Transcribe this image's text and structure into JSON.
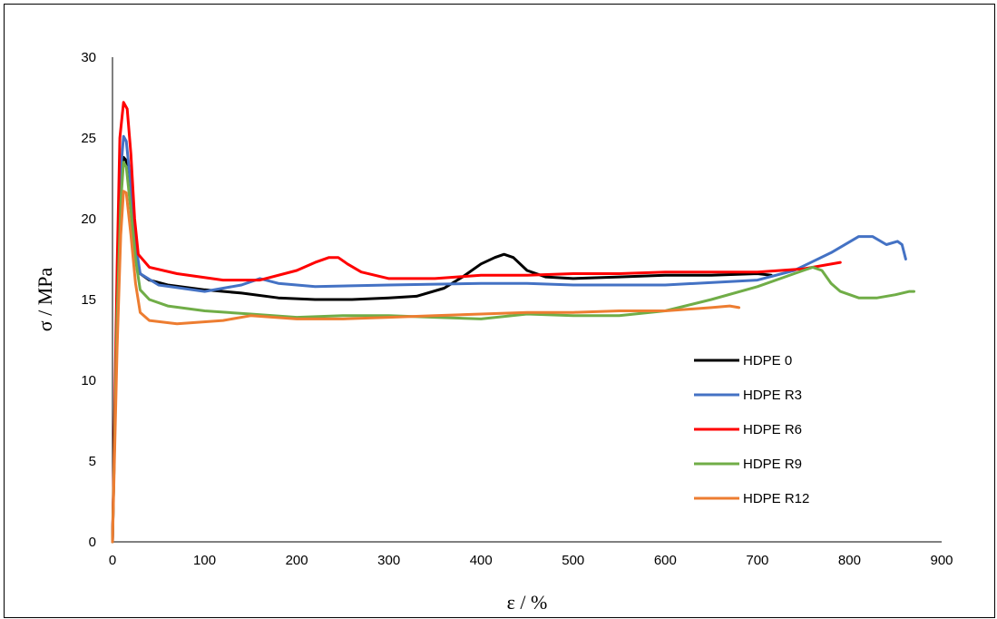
{
  "chart_data": {
    "type": "line",
    "xlabel": "ε / %",
    "ylabel": "σ / MPa",
    "xlim": [
      0,
      900
    ],
    "ylim": [
      0,
      30
    ],
    "xticks": [
      0,
      100,
      200,
      300,
      400,
      500,
      600,
      700,
      800,
      900
    ],
    "yticks": [
      0,
      5,
      10,
      15,
      20,
      25,
      30
    ],
    "grid": false,
    "legend_position": "right",
    "series": [
      {
        "name": "HDPE 0",
        "color": "#000000",
        "points": [
          [
            0,
            0
          ],
          [
            5,
            14
          ],
          [
            9,
            22
          ],
          [
            12,
            23.8
          ],
          [
            15,
            23.6
          ],
          [
            20,
            21
          ],
          [
            25,
            18
          ],
          [
            30,
            16.6
          ],
          [
            40,
            16.2
          ],
          [
            60,
            15.9
          ],
          [
            100,
            15.6
          ],
          [
            140,
            15.4
          ],
          [
            180,
            15.1
          ],
          [
            220,
            15.0
          ],
          [
            260,
            15.0
          ],
          [
            300,
            15.1
          ],
          [
            330,
            15.2
          ],
          [
            360,
            15.7
          ],
          [
            380,
            16.4
          ],
          [
            400,
            17.2
          ],
          [
            415,
            17.6
          ],
          [
            425,
            17.8
          ],
          [
            435,
            17.6
          ],
          [
            450,
            16.8
          ],
          [
            470,
            16.4
          ],
          [
            500,
            16.3
          ],
          [
            550,
            16.4
          ],
          [
            600,
            16.5
          ],
          [
            650,
            16.5
          ],
          [
            700,
            16.6
          ],
          [
            715,
            16.5
          ]
        ]
      },
      {
        "name": "HDPE R3",
        "color": "#4472C4",
        "points": [
          [
            0,
            0
          ],
          [
            5,
            15
          ],
          [
            9,
            23
          ],
          [
            12,
            25.1
          ],
          [
            15,
            24.8
          ],
          [
            20,
            22
          ],
          [
            25,
            18.5
          ],
          [
            30,
            16.6
          ],
          [
            50,
            15.9
          ],
          [
            100,
            15.5
          ],
          [
            140,
            15.9
          ],
          [
            160,
            16.3
          ],
          [
            180,
            16.0
          ],
          [
            220,
            15.8
          ],
          [
            300,
            15.9
          ],
          [
            400,
            16.0
          ],
          [
            450,
            16.0
          ],
          [
            500,
            15.9
          ],
          [
            600,
            15.9
          ],
          [
            700,
            16.2
          ],
          [
            740,
            16.8
          ],
          [
            780,
            17.9
          ],
          [
            810,
            18.9
          ],
          [
            825,
            18.9
          ],
          [
            840,
            18.4
          ],
          [
            852,
            18.6
          ],
          [
            857,
            18.4
          ],
          [
            861,
            17.5
          ]
        ]
      },
      {
        "name": "HDPE R6",
        "color": "#FF0000",
        "points": [
          [
            0,
            0
          ],
          [
            5,
            17
          ],
          [
            8,
            25
          ],
          [
            12,
            27.2
          ],
          [
            16,
            26.8
          ],
          [
            20,
            24
          ],
          [
            24,
            20
          ],
          [
            28,
            17.8
          ],
          [
            40,
            17.0
          ],
          [
            70,
            16.6
          ],
          [
            120,
            16.2
          ],
          [
            160,
            16.2
          ],
          [
            200,
            16.8
          ],
          [
            220,
            17.3
          ],
          [
            235,
            17.6
          ],
          [
            245,
            17.6
          ],
          [
            255,
            17.2
          ],
          [
            270,
            16.7
          ],
          [
            300,
            16.3
          ],
          [
            350,
            16.3
          ],
          [
            400,
            16.5
          ],
          [
            450,
            16.5
          ],
          [
            500,
            16.6
          ],
          [
            550,
            16.6
          ],
          [
            600,
            16.7
          ],
          [
            650,
            16.7
          ],
          [
            700,
            16.7
          ],
          [
            750,
            16.9
          ],
          [
            790,
            17.3
          ]
        ]
      },
      {
        "name": "HDPE R9",
        "color": "#70AD47",
        "points": [
          [
            0,
            0
          ],
          [
            5,
            14
          ],
          [
            9,
            21
          ],
          [
            12,
            23.5
          ],
          [
            15,
            23.2
          ],
          [
            20,
            20.5
          ],
          [
            25,
            17.5
          ],
          [
            30,
            15.6
          ],
          [
            40,
            15.0
          ],
          [
            60,
            14.6
          ],
          [
            100,
            14.3
          ],
          [
            150,
            14.1
          ],
          [
            200,
            13.9
          ],
          [
            250,
            14.0
          ],
          [
            300,
            14.0
          ],
          [
            350,
            13.9
          ],
          [
            400,
            13.8
          ],
          [
            450,
            14.1
          ],
          [
            500,
            14.0
          ],
          [
            550,
            14.0
          ],
          [
            600,
            14.3
          ],
          [
            650,
            15.0
          ],
          [
            700,
            15.8
          ],
          [
            740,
            16.6
          ],
          [
            760,
            17.0
          ],
          [
            770,
            16.8
          ],
          [
            780,
            16.0
          ],
          [
            790,
            15.5
          ],
          [
            810,
            15.1
          ],
          [
            830,
            15.1
          ],
          [
            850,
            15.3
          ],
          [
            865,
            15.5
          ],
          [
            870,
            15.5
          ]
        ]
      },
      {
        "name": "HDPE R12",
        "color": "#ED7D31",
        "points": [
          [
            0,
            0
          ],
          [
            5,
            12
          ],
          [
            9,
            19
          ],
          [
            12,
            21.7
          ],
          [
            15,
            21.6
          ],
          [
            20,
            19
          ],
          [
            25,
            16
          ],
          [
            30,
            14.2
          ],
          [
            40,
            13.7
          ],
          [
            70,
            13.5
          ],
          [
            120,
            13.7
          ],
          [
            150,
            14.0
          ],
          [
            200,
            13.8
          ],
          [
            250,
            13.8
          ],
          [
            300,
            13.9
          ],
          [
            350,
            14.0
          ],
          [
            400,
            14.1
          ],
          [
            450,
            14.2
          ],
          [
            500,
            14.2
          ],
          [
            550,
            14.3
          ],
          [
            600,
            14.3
          ],
          [
            650,
            14.5
          ],
          [
            670,
            14.6
          ],
          [
            680,
            14.5
          ]
        ]
      }
    ]
  }
}
